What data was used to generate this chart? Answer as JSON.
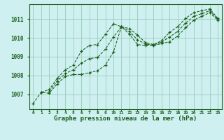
{
  "title": "Graphe pression niveau de la mer (hPa)",
  "bg_color": "#cef0f0",
  "grid_color": "#99ccbb",
  "line_color": "#1a5c1a",
  "x_labels": [
    "0",
    "1",
    "2",
    "3",
    "4",
    "5",
    "6",
    "7",
    "8",
    "9",
    "10",
    "11",
    "12",
    "13",
    "14",
    "15",
    "16",
    "17",
    "18",
    "19",
    "20",
    "21",
    "22",
    "23"
  ],
  "ylim": [
    1006.2,
    1011.8
  ],
  "yticks": [
    1007,
    1008,
    1009,
    1010,
    1011
  ],
  "series": {
    "upper": [
      null,
      1007.1,
      1007.25,
      1007.85,
      1008.3,
      1008.55,
      1009.3,
      1009.6,
      1009.65,
      1010.2,
      1010.75,
      1010.6,
      1010.5,
      1010.15,
      1009.75,
      1009.65,
      1009.85,
      1010.3,
      1010.6,
      1011.05,
      1011.35,
      1011.45,
      1011.55,
      1011.05
    ],
    "lower": [
      1006.5,
      1007.1,
      1007.05,
      1007.55,
      1007.95,
      1008.05,
      1008.05,
      1008.15,
      1008.25,
      1008.55,
      1009.25,
      1010.6,
      1010.2,
      1009.65,
      1009.6,
      1009.6,
      1009.7,
      1009.8,
      1010.1,
      1010.55,
      1010.95,
      1011.15,
      1011.35,
      1010.95
    ],
    "mid": [
      null,
      null,
      1007.15,
      1007.7,
      1008.1,
      1008.3,
      1008.65,
      1008.9,
      1008.95,
      1009.4,
      1010.05,
      1010.6,
      1010.35,
      1009.9,
      1009.68,
      1009.62,
      1009.78,
      1010.05,
      1010.35,
      1010.8,
      1011.15,
      1011.3,
      1011.45,
      1011.0
    ]
  }
}
